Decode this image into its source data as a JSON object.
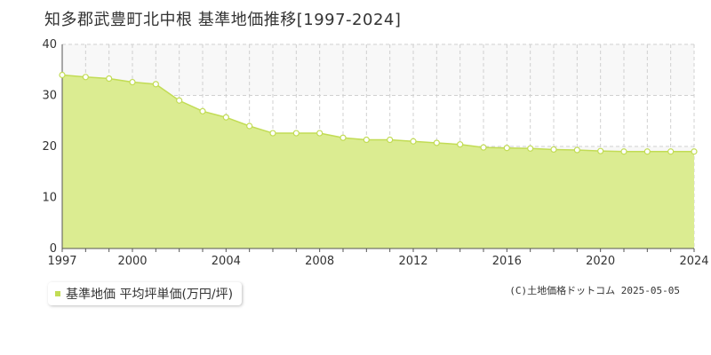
{
  "title": "知多郡武豊町北中根 基準地価推移[1997-2024]",
  "legend_label": "基準地価 平均坪単価(万円/坪)",
  "credit": "(C)土地価格ドットコム 2025-05-05",
  "colors": {
    "area_fill": "#dbec91",
    "line": "#c2dc55",
    "marker_fill": "#ffffff",
    "grid": "#d0d0d0",
    "band": "#f8f8f8",
    "axis": "#555555"
  },
  "chart_data": {
    "type": "area",
    "title": "知多郡武豊町北中根 基準地価推移[1997-2024]",
    "xlabel": "",
    "ylabel": "",
    "xlim": [
      1997,
      2024
    ],
    "ylim": [
      0,
      40
    ],
    "yticks": [
      0,
      10,
      20,
      30,
      40
    ],
    "xticks": [
      1997,
      2000,
      2004,
      2008,
      2012,
      2016,
      2020,
      2024
    ],
    "grid": true,
    "legend": "bottom-left",
    "series": [
      {
        "name": "基準地価 平均坪単価(万円/坪)",
        "x": [
          1997,
          1998,
          1999,
          2000,
          2001,
          2002,
          2003,
          2004,
          2005,
          2006,
          2007,
          2008,
          2009,
          2010,
          2011,
          2012,
          2013,
          2014,
          2015,
          2016,
          2017,
          2018,
          2019,
          2020,
          2021,
          2022,
          2023,
          2024
        ],
        "values": [
          34.0,
          33.6,
          33.3,
          32.6,
          32.2,
          29.0,
          26.9,
          25.7,
          24.0,
          22.6,
          22.6,
          22.6,
          21.7,
          21.3,
          21.3,
          21.0,
          20.7,
          20.4,
          19.8,
          19.7,
          19.6,
          19.4,
          19.3,
          19.1,
          19.0,
          19.0,
          19.0,
          19.0
        ]
      }
    ]
  }
}
